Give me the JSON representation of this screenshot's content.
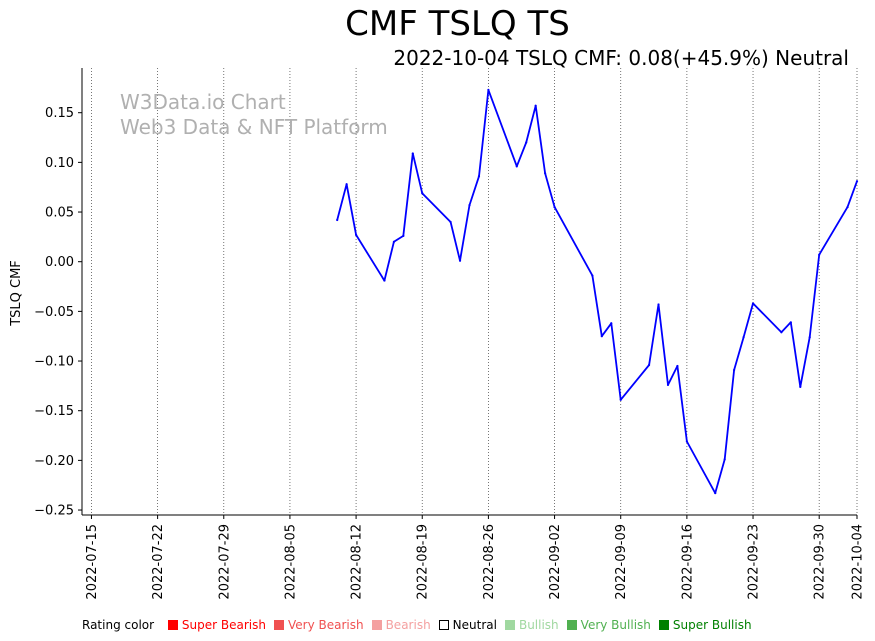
{
  "title": "CMF TSLQ TS",
  "subtitle": "2022-10-04 TSLQ CMF: 0.08(+45.9%) Neutral",
  "watermark": {
    "line1": "W3Data.io Chart",
    "line2": "Web3 Data & NFT Platform"
  },
  "legend": {
    "label": "Rating color",
    "items": [
      {
        "name": "Super Bearish",
        "color": "#ff0000"
      },
      {
        "name": "Very Bearish",
        "color": "#f05050"
      },
      {
        "name": "Bearish",
        "color": "#f4a0a0"
      },
      {
        "name": "Neutral",
        "color": "#000000",
        "hollow": true
      },
      {
        "name": "Bullish",
        "color": "#a0d8a0"
      },
      {
        "name": "Very Bullish",
        "color": "#50b050"
      },
      {
        "name": "Super Bullish",
        "color": "#008000"
      }
    ]
  },
  "chart_data": {
    "type": "line",
    "title": "CMF TSLQ TS",
    "xlabel": "",
    "ylabel": "TSLQ CMF",
    "xlim": [
      "2022-07-14",
      "2022-10-04"
    ],
    "ylim": [
      -0.255,
      0.195
    ],
    "yticks": [
      0.15,
      0.1,
      0.05,
      0.0,
      -0.05,
      -0.1,
      -0.15,
      -0.2,
      -0.25
    ],
    "ytick_labels": [
      "0.15",
      "0.10",
      "0.05",
      "0.00",
      "−0.05",
      "−0.10",
      "−0.15",
      "−0.20",
      "−0.25"
    ],
    "xticks": [
      "2022-07-15",
      "2022-07-22",
      "2022-07-29",
      "2022-08-05",
      "2022-08-12",
      "2022-08-19",
      "2022-08-26",
      "2022-09-02",
      "2022-09-09",
      "2022-09-16",
      "2022-09-23",
      "2022-09-30",
      "2022-10-04"
    ],
    "vgrid": "dotted",
    "series": [
      {
        "name": "TSLQ CMF",
        "color": "#0000ff",
        "x": [
          "2022-08-10",
          "2022-08-11",
          "2022-08-12",
          "2022-08-15",
          "2022-08-16",
          "2022-08-17",
          "2022-08-18",
          "2022-08-19",
          "2022-08-22",
          "2022-08-23",
          "2022-08-24",
          "2022-08-25",
          "2022-08-26",
          "2022-08-29",
          "2022-08-30",
          "2022-08-31",
          "2022-09-01",
          "2022-09-02",
          "2022-09-06",
          "2022-09-07",
          "2022-09-08",
          "2022-09-09",
          "2022-09-12",
          "2022-09-13",
          "2022-09-14",
          "2022-09-15",
          "2022-09-16",
          "2022-09-19",
          "2022-09-20",
          "2022-09-21",
          "2022-09-22",
          "2022-09-23",
          "2022-09-26",
          "2022-09-27",
          "2022-09-28",
          "2022-09-29",
          "2022-09-30",
          "2022-10-03",
          "2022-10-04"
        ],
        "values": [
          0.042,
          0.078,
          0.027,
          -0.019,
          0.02,
          0.026,
          0.109,
          0.069,
          0.04,
          0.001,
          0.057,
          0.086,
          0.173,
          0.096,
          0.12,
          0.157,
          0.089,
          0.055,
          -0.014,
          -0.075,
          -0.062,
          -0.139,
          -0.104,
          -0.043,
          -0.124,
          -0.105,
          -0.181,
          -0.233,
          -0.199,
          -0.109,
          -0.076,
          -0.042,
          -0.071,
          -0.061,
          -0.126,
          -0.076,
          0.007,
          0.055,
          0.081
        ]
      }
    ]
  }
}
